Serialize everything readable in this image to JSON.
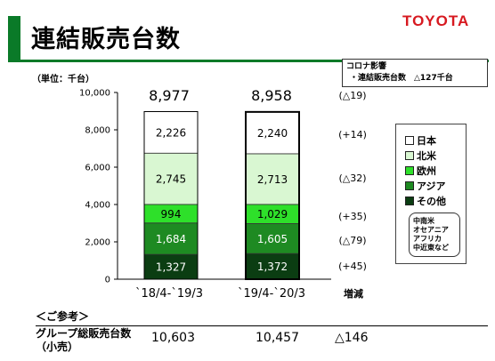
{
  "header": {
    "title": "連結販売台数",
    "brand": "TOYOTA",
    "accent_color": "#0a7a28",
    "brand_color": "#d71920"
  },
  "note": {
    "line1": "コロナ影響",
    "line2": "・連結販売台数　△127千台"
  },
  "unit_label": "（単位：千台）",
  "change_header": "増減",
  "chart_data": {
    "type": "bar",
    "stacked": true,
    "categories": [
      "`18/4-`19/3",
      "`19/4-`20/3"
    ],
    "totals": [
      "8,977",
      "8,958"
    ],
    "ylim": [
      0,
      10000
    ],
    "yticks": [
      "0",
      "2,000",
      "4,000",
      "6,000",
      "8,000",
      "10,000"
    ],
    "grid": false,
    "series": [
      {
        "name": "その他",
        "values": [
          1327,
          1372
        ],
        "labels": [
          "1,327",
          "1,372"
        ],
        "color": "#0b3d12",
        "text_color": "#ffffff"
      },
      {
        "name": "アジア",
        "values": [
          1684,
          1605
        ],
        "labels": [
          "1,684",
          "1,605"
        ],
        "color": "#1e8a22",
        "text_color": "#ffffff"
      },
      {
        "name": "欧州",
        "values": [
          994,
          1029
        ],
        "labels": [
          "994",
          "1,029"
        ],
        "color": "#2ee02a",
        "text_color": "#000000"
      },
      {
        "name": "北米",
        "values": [
          2745,
          2713
        ],
        "labels": [
          "2,745",
          "2,713"
        ],
        "color": "#d9f7d2",
        "text_color": "#000000"
      },
      {
        "name": "日本",
        "values": [
          2226,
          2240
        ],
        "labels": [
          "2,226",
          "2,240"
        ],
        "color": "#ffffff",
        "text_color": "#000000"
      }
    ],
    "changes": [
      "(△19)",
      "(+14)",
      "(△32)",
      "(+35)",
      "(△79)",
      "(+45)"
    ]
  },
  "legend": {
    "items": [
      {
        "label": "日本",
        "color": "#ffffff"
      },
      {
        "label": "北米",
        "color": "#d9f7d2"
      },
      {
        "label": "欧州",
        "color": "#2ee02a"
      },
      {
        "label": "アジア",
        "color": "#1e8a22"
      },
      {
        "label": "その他",
        "color": "#0b3d12"
      }
    ],
    "other_regions": [
      "中南米",
      "オセアニア",
      "アフリカ",
      "中近東など"
    ]
  },
  "reference": {
    "title": "＜ご参考＞",
    "row_label_line1": "グループ総販売台数",
    "row_label_line2": "（小売）",
    "value_1": "10,603",
    "value_2": "10,457",
    "change": "△146"
  }
}
